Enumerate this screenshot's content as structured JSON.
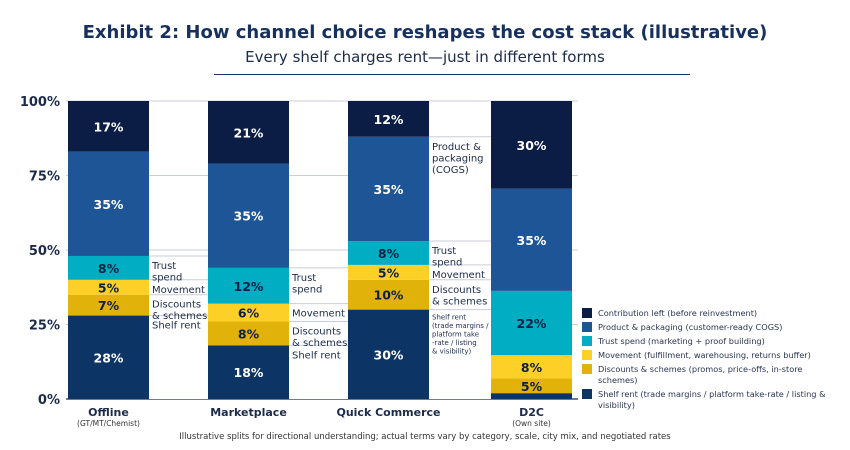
{
  "title": "Exhibit 2: How channel choice reshapes the cost stack (illustrative)",
  "subtitle": "Every shelf charges rent—just in different forms",
  "footnote": "Illustrative splits for directional understanding; actual terms vary by category, scale, city mix, and negotiated rates",
  "chart_data": {
    "type": "bar",
    "stacked": true,
    "ylim": [
      0,
      100
    ],
    "yticks": [
      "0%",
      "25%",
      "50%",
      "75%",
      "100%"
    ],
    "categories": [
      {
        "name": "Offline",
        "sub": "(GT/MT/Chemist)"
      },
      {
        "name": "Marketplace",
        "sub": ""
      },
      {
        "name": "Quick Commerce",
        "sub": ""
      },
      {
        "name": "D2C",
        "sub": "(Own site)"
      }
    ],
    "series": [
      {
        "name": "Shelf rent (trade margins / platform take-rate / listing & visibility)",
        "color": "#0c3566",
        "label_color": "#ffffff",
        "values": [
          28,
          18,
          30,
          2
        ],
        "labels": [
          "28%",
          "18%",
          "30%",
          ""
        ]
      },
      {
        "name": "Discounts & schemes (promos, price-offs, in-store schemes)",
        "color": "#e0b20a",
        "label_color": "#0c1f45",
        "values": [
          7,
          8,
          10,
          5
        ],
        "labels": [
          "7%",
          "8%",
          "10%",
          "5%"
        ]
      },
      {
        "name": "Movement (fulfillment, warehousing, returns buffer)",
        "color": "#fdd027",
        "label_color": "#0c1f45",
        "values": [
          5,
          6,
          5,
          8
        ],
        "labels": [
          "5%",
          "6%",
          "5%",
          "8%"
        ]
      },
      {
        "name": "Trust spend (marketing + proof building)",
        "color": "#00adc2",
        "label_color": "#0c1f45",
        "values": [
          8,
          12,
          8,
          22
        ],
        "labels": [
          "8%",
          "12%",
          "8%",
          "22%"
        ]
      },
      {
        "name": "Product & packaging (customer-ready COGS)",
        "color": "#1e5596",
        "label_color": "#ffffff",
        "values": [
          35,
          35,
          35,
          35
        ],
        "labels": [
          "35%",
          "35%",
          "35%",
          "35%"
        ]
      },
      {
        "name": "Contribution left (before reinvestment)",
        "color": "#0b1c45",
        "label_color": "#ffffff",
        "values": [
          17,
          21,
          12,
          30
        ],
        "labels": [
          "17%",
          "21%",
          "12%",
          "30%"
        ]
      }
    ],
    "legend_order": [
      5,
      4,
      3,
      2,
      1,
      0
    ],
    "legend_placement": "bottom-right",
    "annotations": [
      {
        "bar": 0,
        "items": [
          {
            "text": "Shelf rent",
            "seg": 0
          },
          {
            "text": "Discounts\n& schemes",
            "seg": 1
          },
          {
            "text": "Movement",
            "seg": 2
          },
          {
            "text": "Trust\nspend",
            "seg": 3
          }
        ]
      },
      {
        "bar": 1,
        "items": [
          {
            "text": "Shelf rent",
            "seg": 0
          },
          {
            "text": "Discounts\n& schemes",
            "seg": 1
          },
          {
            "text": "Movement",
            "seg": 2
          },
          {
            "text": "Trust\nspend",
            "seg": 3
          }
        ]
      },
      {
        "bar": 2,
        "items": [
          {
            "text": "Shelf rent\n(trade margins /\nplatform take\n-rate / listing\n& visibility)",
            "seg": 0,
            "small": true
          },
          {
            "text": "Discounts\n& schemes",
            "seg": 1
          },
          {
            "text": "Movement",
            "seg": 2
          },
          {
            "text": "Trust\nspend",
            "seg": 3
          },
          {
            "text": "Product &\npackaging\n(COGS)",
            "seg": 4
          }
        ]
      }
    ]
  }
}
